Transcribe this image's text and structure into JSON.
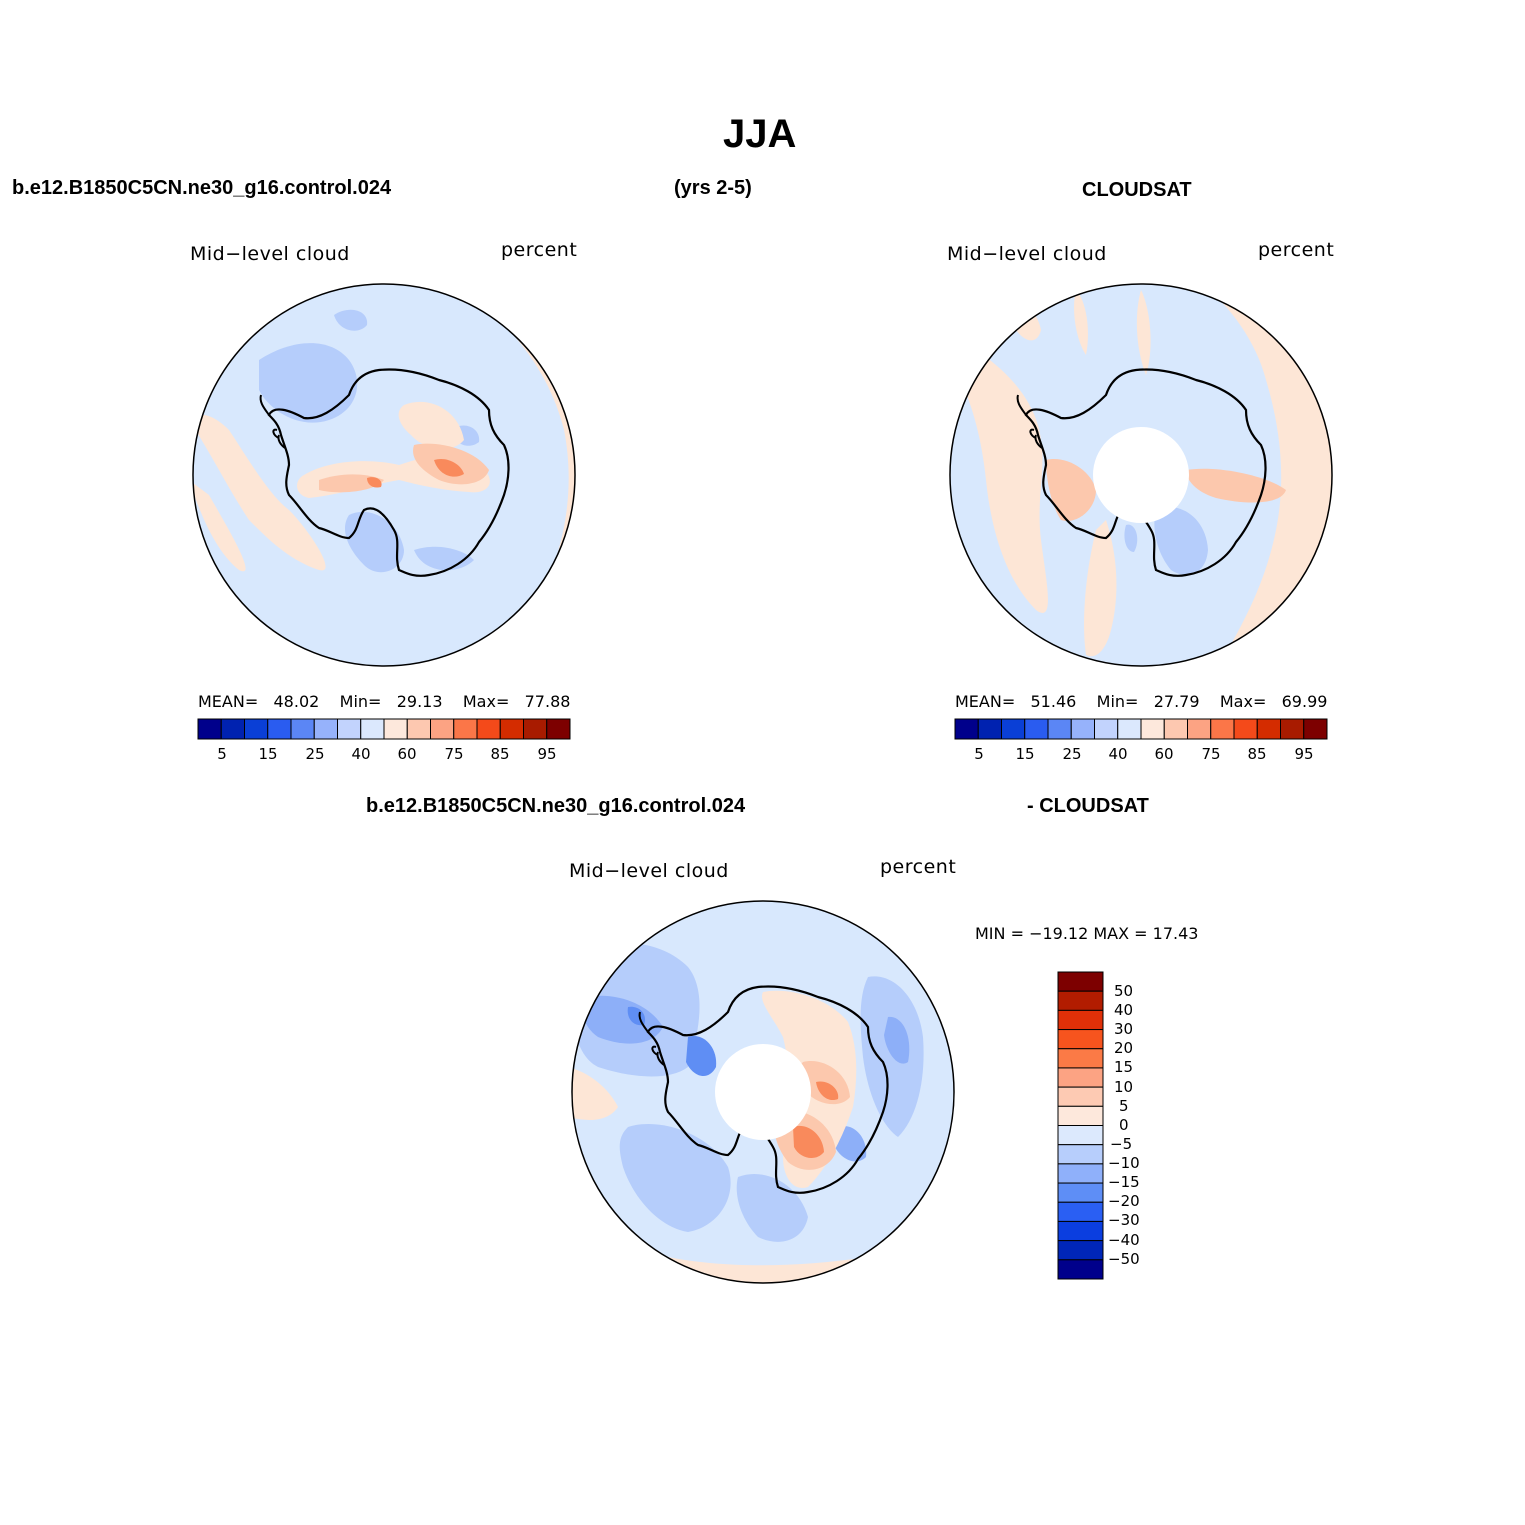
{
  "title": "JJA",
  "header": {
    "case_name": "b.e12.B1850C5CN.ne30_g16.control.024",
    "years": "(yrs 2-5)",
    "obs_name": "CLOUDSAT",
    "diff_case": "b.e12.B1850C5CN.ne30_g16.control.024",
    "diff_obs": "- CLOUDSAT"
  },
  "panels": {
    "model": {
      "variable": "Mid−level cloud",
      "units": "percent",
      "mean_label": "MEAN=",
      "mean": "48.02",
      "min_label": "Min=",
      "min": "29.13",
      "max_label": "Max=",
      "max": "77.88"
    },
    "obs": {
      "variable": "Mid−level cloud",
      "units": "percent",
      "mean_label": "MEAN=",
      "mean": "51.46",
      "min_label": "Min=",
      "min": "27.79",
      "max_label": "Max=",
      "max": "69.99"
    },
    "diff": {
      "variable": "Mid−level cloud",
      "units": "percent",
      "minmax": "MIN = −19.12  MAX =   17.43"
    }
  },
  "colorbar": {
    "colors": [
      "#00008b",
      "#0022b0",
      "#0a3fd6",
      "#2a5cf0",
      "#5b86f5",
      "#96b2fb",
      "#c2d3fd",
      "#dbe8fd",
      "#fde8dc",
      "#fdc8b0",
      "#fca383",
      "#fb7648",
      "#f44a1a",
      "#d42c00",
      "#a81b00",
      "#7d0000"
    ],
    "labels": [
      "5",
      "15",
      "25",
      "40",
      "60",
      "75",
      "85",
      "95"
    ]
  },
  "diff_colorbar": {
    "colors": [
      "#7d0000",
      "#b21c00",
      "#e03008",
      "#f7541e",
      "#fb7a46",
      "#fca383",
      "#fdcab3",
      "#fde8dc",
      "#dce9fd",
      "#b7cefc",
      "#8fb0fa",
      "#5e8ef6",
      "#2a5ff3",
      "#0b3ee0",
      "#0026b8",
      "#00008b"
    ],
    "labels": [
      "50",
      "40",
      "30",
      "20",
      "15",
      "10",
      "5",
      "0",
      "−5",
      "−10",
      "−15",
      "−20",
      "−30",
      "−40",
      "−50"
    ]
  },
  "map_colors": {
    "base_light_blue": "#d8e8fd",
    "light_orange": "#fde6d6",
    "medium_orange": "#fcc8ad",
    "strong_orange": "#f98a5c",
    "deep_orange": "#f25a24",
    "medium_blue": "#b5cdfb",
    "deeper_blue": "#8daff8",
    "strong_blue": "#5f8ef4",
    "coast": "#000000"
  }
}
